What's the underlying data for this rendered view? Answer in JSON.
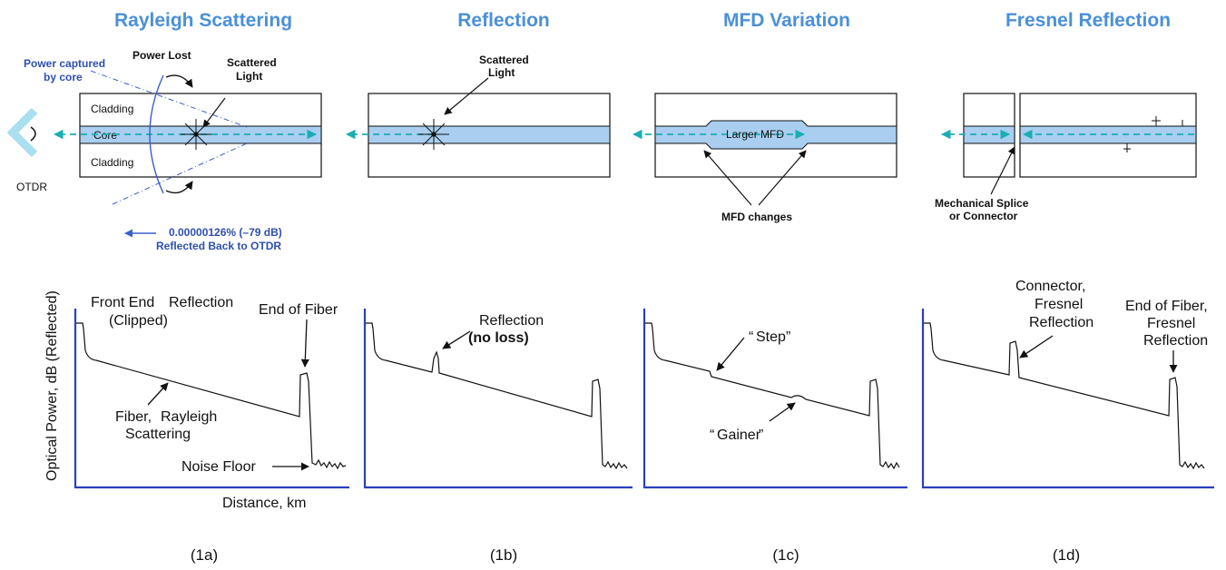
{
  "colors": {
    "title_blue": "#4a90d9",
    "core_fill": "#a9cef0",
    "axis_blue": "#2a3fbf",
    "arrow_teal": "#1aaeb3",
    "ray_blue": "#3a5ec8",
    "trace": "#111111"
  },
  "panels": [
    {
      "title": "Rayleigh Scattering",
      "caption": "(1a)",
      "top_labels": {
        "power_captured_1": "Power captured",
        "power_captured_2": "by core",
        "power_lost": "Power Lost",
        "scattered_1": "Scattered",
        "scattered_2": "Light",
        "cladding_top": "Cladding",
        "core": "Core",
        "cladding_bottom": "Cladding",
        "otdr": "OTDR",
        "reflected_1": "0.00000126% (–79 dB)",
        "reflected_2": "Reflected Back to OTDR"
      },
      "trace_labels": {
        "front_end_1": "Front End",
        "front_end_reflection": "Reflection",
        "front_end_2": "(Clipped)",
        "end_of_fiber": "End of Fiber",
        "fiber": "Fiber,",
        "rayleigh": "Rayleigh",
        "scattering": "Scattering",
        "noise_floor": "Noise Floor"
      },
      "y_axis_label": "Optical Power, dB (Reflected)",
      "x_axis_label": "Distance, km"
    },
    {
      "title": "Reflection",
      "caption": "(1b)",
      "top_labels": {
        "scattered_1": "Scattered",
        "scattered_2": "Light"
      },
      "trace_labels": {
        "reflection": "Reflection",
        "no_loss": "(no loss)"
      }
    },
    {
      "title": "MFD Variation",
      "caption": "(1c)",
      "top_labels": {
        "larger_mfd": "Larger MFD",
        "mfd_changes": "MFD changes"
      },
      "trace_labels": {
        "step": "Step",
        "gainer": "Gainer",
        "open_quote": "“",
        "close_quote": "”"
      }
    },
    {
      "title": "Fresnel Reflection",
      "caption": "(1d)",
      "top_labels": {
        "splice_1": "Mechanical Splice",
        "splice_2": "or Connector"
      },
      "trace_labels": {
        "connector": "Connector,",
        "conn_fresnel": "Fresnel",
        "conn_reflection": "Reflection",
        "end_of_fiber": "End of Fiber,",
        "end_fresnel": "Fresnel",
        "end_reflection": "Reflection"
      }
    }
  ]
}
